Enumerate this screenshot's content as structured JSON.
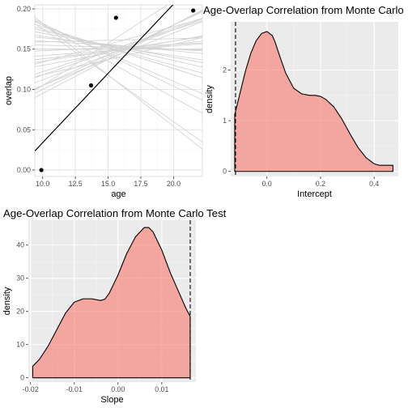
{
  "chart_data": [
    {
      "type": "scatter",
      "title": "",
      "xlabel": "age",
      "ylabel": "overlap",
      "xlim": [
        9.4,
        22.2
      ],
      "ylim": [
        -0.008,
        0.205
      ],
      "x_ticks": [
        10.0,
        12.5,
        15.0,
        17.5,
        20.0
      ],
      "x_tick_labels": [
        "10.0",
        "12.5",
        "15.0",
        "17.5",
        "20.0"
      ],
      "y_ticks": [
        0.0,
        0.05,
        0.1,
        0.15,
        0.2
      ],
      "y_tick_labels": [
        "0.00",
        "0.05",
        "0.10",
        "0.15",
        "0.20"
      ],
      "background": "#ffffff",
      "grid": true,
      "points": [
        {
          "x": 9.9,
          "y": 0.0
        },
        {
          "x": 13.7,
          "y": 0.105
        },
        {
          "x": 15.6,
          "y": 0.189
        },
        {
          "x": 21.5,
          "y": 0.198
        }
      ],
      "fit_line": {
        "intercept": -0.138,
        "slope": 0.0172,
        "color": "#000000"
      },
      "simulated_lines": {
        "color": "#d3d3d3",
        "lines": [
          {
            "intercept": 0.01,
            "slope": 0.0085
          },
          {
            "intercept": 0.04,
            "slope": 0.0065
          },
          {
            "intercept": 0.08,
            "slope": 0.0038
          },
          {
            "intercept": 0.12,
            "slope": 0.0018
          },
          {
            "intercept": 0.16,
            "slope": -0.0005
          },
          {
            "intercept": 0.19,
            "slope": -0.0024
          },
          {
            "intercept": 0.22,
            "slope": -0.0045
          },
          {
            "intercept": 0.25,
            "slope": -0.007
          },
          {
            "intercept": 0.27,
            "slope": -0.009
          },
          {
            "intercept": 0.29,
            "slope": -0.0115
          },
          {
            "intercept": 0.31,
            "slope": -0.0128
          },
          {
            "intercept": 0.05,
            "slope": 0.0062
          },
          {
            "intercept": 0.1,
            "slope": 0.003
          },
          {
            "intercept": 0.13,
            "slope": 0.0012
          },
          {
            "intercept": 0.15,
            "slope": 0.0
          },
          {
            "intercept": 0.18,
            "slope": -0.0016
          },
          {
            "intercept": 0.02,
            "slope": 0.008
          },
          {
            "intercept": 0.07,
            "slope": 0.0052
          },
          {
            "intercept": 0.11,
            "slope": 0.0025
          },
          {
            "intercept": 0.14,
            "slope": 0.0008
          },
          {
            "intercept": 0.17,
            "slope": -0.001
          },
          {
            "intercept": 0.2,
            "slope": -0.003
          },
          {
            "intercept": 0.23,
            "slope": -0.0052
          },
          {
            "intercept": 0.03,
            "slope": 0.0075
          },
          {
            "intercept": 0.09,
            "slope": 0.0044
          },
          {
            "intercept": 0.26,
            "slope": -0.0078
          },
          {
            "intercept": 0.06,
            "slope": 0.0058
          },
          {
            "intercept": 0.155,
            "slope": 0.0004
          },
          {
            "intercept": 0.21,
            "slope": -0.0037
          },
          {
            "intercept": 0.0,
            "slope": 0.0105
          }
        ]
      }
    },
    {
      "type": "area",
      "title": "Age-Overlap Correlation from Monte Carlo",
      "xlabel": "Intercept",
      "ylabel": "density",
      "xlim": [
        -0.135,
        0.49
      ],
      "ylim": [
        -0.1,
        2.95
      ],
      "x_ticks": [
        0.0,
        0.2,
        0.4
      ],
      "x_tick_labels": [
        "0.0",
        "0.2",
        "0.4"
      ],
      "y_ticks": [
        0,
        1,
        2
      ],
      "y_tick_labels": [
        "0",
        "1",
        "2"
      ],
      "background": "#ebebeb",
      "grid": true,
      "fill_color": "#f8766d",
      "fill_opacity": 0.6,
      "observed_line": {
        "x": -0.117,
        "style": "dashed"
      },
      "x": [
        -0.12,
        -0.1,
        -0.08,
        -0.06,
        -0.04,
        -0.02,
        0.0,
        0.02,
        0.03,
        0.05,
        0.07,
        0.1,
        0.13,
        0.16,
        0.18,
        0.2,
        0.22,
        0.25,
        0.28,
        0.31,
        0.34,
        0.37,
        0.4,
        0.42,
        0.45,
        0.47
      ],
      "y": [
        1.12,
        1.55,
        1.98,
        2.33,
        2.58,
        2.72,
        2.76,
        2.68,
        2.56,
        2.24,
        1.94,
        1.64,
        1.53,
        1.5,
        1.5,
        1.48,
        1.42,
        1.27,
        1.03,
        0.74,
        0.47,
        0.27,
        0.15,
        0.12,
        0.12,
        0.12
      ]
    },
    {
      "type": "area",
      "title": "Age-Overlap Correlation from Monte Carlo Test",
      "xlabel": "Slope",
      "ylabel": "density",
      "xlim": [
        -0.0205,
        0.0178
      ],
      "ylim": [
        -1.3,
        47.5
      ],
      "x_ticks": [
        -0.02,
        -0.01,
        0.0,
        0.01
      ],
      "x_tick_labels": [
        "-0.02",
        "-0.01",
        "0.00",
        "0.01"
      ],
      "y_ticks": [
        0,
        10,
        20,
        30,
        40
      ],
      "y_tick_labels": [
        "0",
        "10",
        "20",
        "30",
        "40"
      ],
      "background": "#ebebeb",
      "grid": true,
      "fill_color": "#f8766d",
      "fill_opacity": 0.6,
      "observed_line": {
        "x": 0.0165,
        "style": "dashed"
      },
      "x": [
        -0.0195,
        -0.018,
        -0.016,
        -0.014,
        -0.012,
        -0.01,
        -0.008,
        -0.006,
        -0.004,
        -0.003,
        -0.002,
        0.0,
        0.002,
        0.004,
        0.006,
        0.007,
        0.008,
        0.01,
        0.012,
        0.014,
        0.0155,
        0.0165
      ],
      "y": [
        3.5,
        5.5,
        9.5,
        14.5,
        19.5,
        22.8,
        23.8,
        23.8,
        23.3,
        23.7,
        25.5,
        31.0,
        37.5,
        42.5,
        45.3,
        45.3,
        44.0,
        38.5,
        31.5,
        25.5,
        21.0,
        18.5
      ]
    }
  ]
}
